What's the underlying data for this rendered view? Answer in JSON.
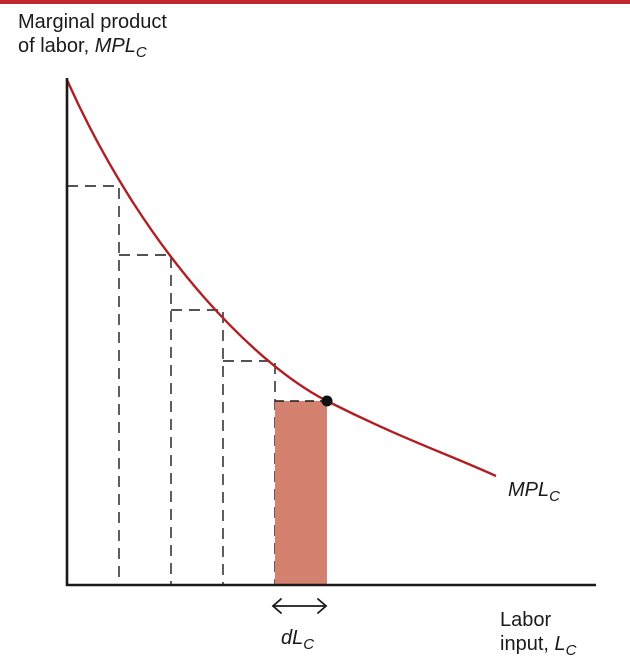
{
  "colors": {
    "rule": "#c0282d",
    "curve": "#b01f24",
    "shaded_rect": "#d4826f",
    "axis": "#1a1a1a",
    "dash": "#1a1a1a",
    "point": "#111111"
  },
  "y_axis_label": {
    "line1": "Marginal product",
    "line2_prefix": "of labor, ",
    "line2_italic": "MPL",
    "line2_sub": "C"
  },
  "x_axis_label": {
    "line1": "Labor",
    "line2_prefix": "input, ",
    "line2_italic": "L",
    "line2_sub": "C"
  },
  "curve_label": {
    "italic": "MPL",
    "sub": "C"
  },
  "increment_label": {
    "italic": "dL",
    "sub": "C"
  },
  "icons": {
    "increment_arrow": "double-headed-arrow"
  }
}
